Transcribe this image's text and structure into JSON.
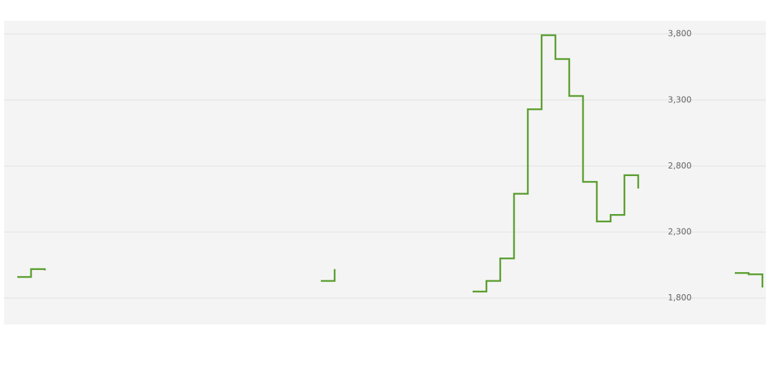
{
  "chart_data": {
    "type": "line",
    "series": [
      {
        "color": "#5a9e2f",
        "values": [
          1960,
          2020,
          2010,
          null,
          null,
          null,
          null,
          null,
          null,
          null,
          null,
          null,
          null,
          null,
          null,
          null,
          null,
          null,
          null,
          null,
          null,
          null,
          1930,
          2020,
          null,
          null,
          null,
          null,
          null,
          null,
          null,
          null,
          null,
          1850,
          1930,
          2100,
          2590,
          3230,
          3790,
          3610,
          3330,
          2680,
          2380,
          2430,
          2730,
          2630,
          null,
          null,
          null,
          null,
          null,
          null,
          1990,
          1980,
          1880
        ]
      }
    ],
    "ylim": [
      1600,
      3900
    ],
    "yticks": [
      {
        "value": 1800,
        "label": "1,800"
      },
      {
        "value": 2300,
        "label": "2,300"
      },
      {
        "value": 2800,
        "label": "2,800"
      },
      {
        "value": 3300,
        "label": "3,300"
      },
      {
        "value": 3800,
        "label": "3,800"
      }
    ],
    "grid": true
  }
}
